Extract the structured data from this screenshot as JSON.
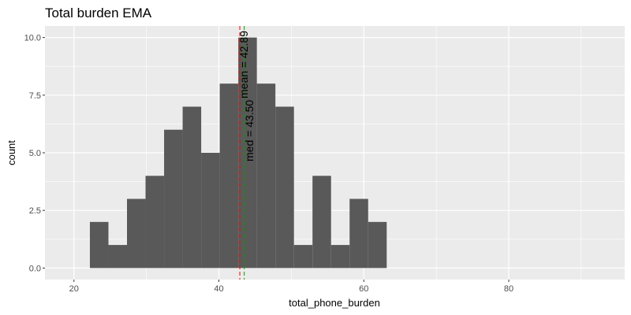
{
  "chart_data": {
    "type": "bar",
    "title": "Total burden EMA",
    "xlabel": "total_phone_burden",
    "ylabel": "count",
    "xlim": [
      16,
      96
    ],
    "ylim": [
      -0.5,
      10.5
    ],
    "x_ticks": [
      20,
      40,
      60,
      80
    ],
    "y_ticks": [
      0,
      2.5,
      5,
      7.5,
      10
    ],
    "x_tick_labels": [
      "20",
      "40",
      "60",
      "80"
    ],
    "y_tick_labels": [
      "0.0",
      "2.5",
      "5.0",
      "7.5",
      "10.0"
    ],
    "bin_width": 2.56,
    "bins_start": [
      22.2,
      24.76,
      27.32,
      29.88,
      32.44,
      35.0,
      37.56,
      40.12,
      42.68,
      45.24,
      47.8,
      50.36,
      52.92,
      55.48,
      58.04,
      60.6,
      63.16
    ],
    "counts": [
      2,
      1,
      3,
      4,
      6,
      7,
      5,
      8,
      10,
      8,
      7,
      1,
      4,
      1,
      3,
      2
    ],
    "grid": true,
    "reference_lines": [
      {
        "name": "mean",
        "value": 42.89,
        "color": "#ff0000",
        "style": "dashed",
        "label": "mean = 42.89"
      },
      {
        "name": "median",
        "value": 43.5,
        "color": "#00a000",
        "style": "dashed",
        "label": "med = 43.50"
      }
    ],
    "colors": {
      "bars": "#595959",
      "panel": "#ebebeb",
      "grid": "#ffffff"
    }
  }
}
